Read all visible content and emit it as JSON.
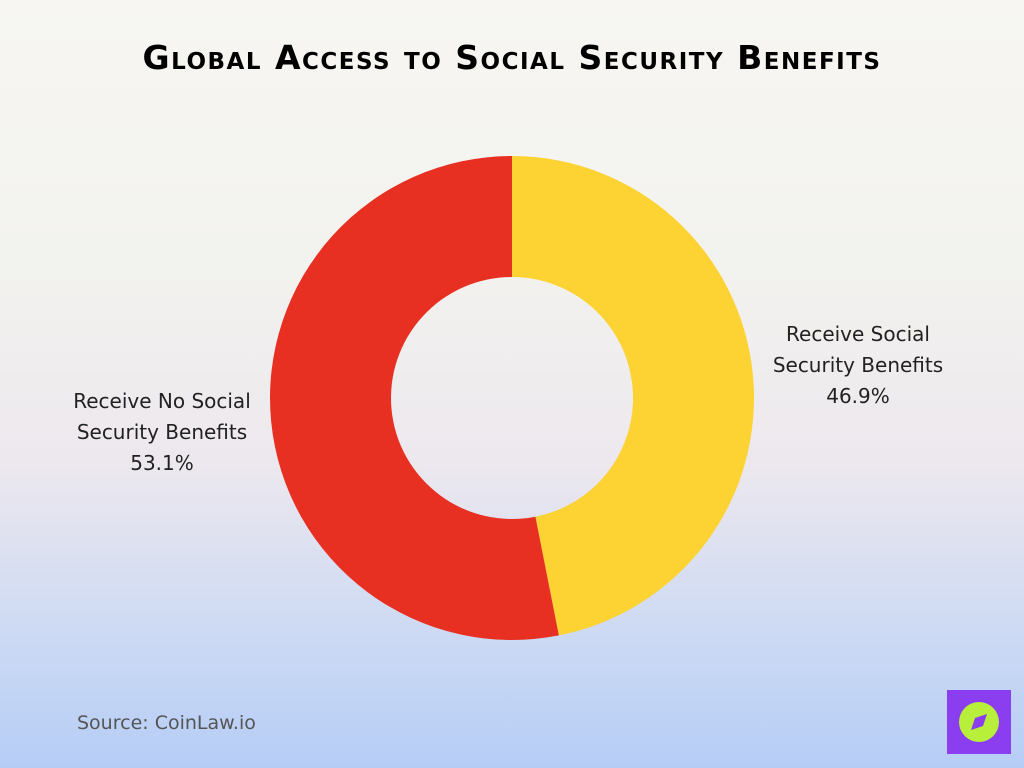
{
  "chart_data": {
    "type": "donut",
    "title": "Global Access to Social Security Benefits",
    "categories": [
      "Receive Social Security Benefits",
      "Receive No Social Security Benefits"
    ],
    "values": [
      46.9,
      53.1
    ],
    "value_labels": [
      "46.9%",
      "53.1%"
    ],
    "colors": [
      "#fdd233",
      "#e83022"
    ],
    "source": "Source: CoinLaw.io"
  }
}
